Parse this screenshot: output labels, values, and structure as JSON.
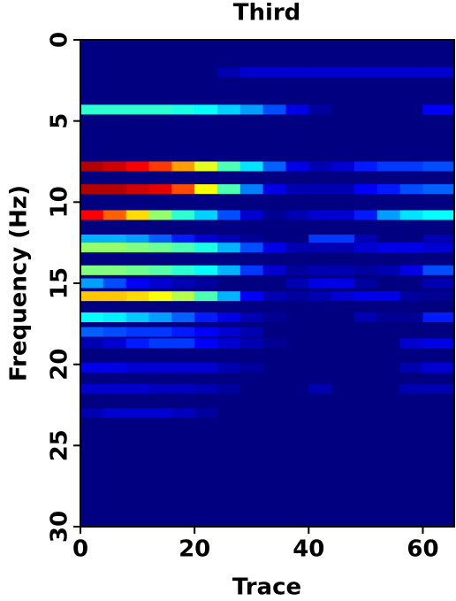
{
  "chart_data": {
    "type": "heatmap",
    "title": "Third",
    "x_label": "Trace",
    "y_label": "Frequency (Hz)",
    "colormap": "jet",
    "zlim": [
      0,
      1
    ],
    "xlim": [
      0,
      65.5
    ],
    "xticks": [
      0,
      20,
      40,
      60
    ],
    "ylim": [
      0,
      30
    ],
    "yticks": [
      0,
      5,
      10,
      15,
      20,
      25,
      30
    ],
    "y_inverted": true,
    "x": [
      0,
      4,
      8,
      12,
      16,
      20,
      24,
      28,
      32,
      36,
      40,
      44,
      48,
      52,
      56,
      60
    ],
    "y": [
      2.0,
      4.3,
      7.8,
      9.2,
      10.8,
      12.3,
      12.8,
      14.2,
      15.0,
      15.8,
      17.1,
      18.0,
      18.7,
      20.2,
      21.5,
      23.0
    ],
    "z": [
      [
        0,
        0,
        0,
        0,
        0,
        0,
        0.05,
        0.08,
        0.08,
        0.08,
        0.08,
        0.08,
        0.08,
        0.08,
        0.08,
        0.08
      ],
      [
        0.42,
        0.42,
        0.42,
        0.42,
        0.4,
        0.38,
        0.33,
        0.28,
        0.2,
        0.1,
        0.03,
        0,
        0,
        0,
        0,
        0.12
      ],
      [
        0.95,
        0.92,
        0.88,
        0.82,
        0.72,
        0.6,
        0.45,
        0.35,
        0.22,
        0.1,
        0.05,
        0.08,
        0.15,
        0.18,
        0.18,
        0.2
      ],
      [
        0.95,
        0.95,
        0.92,
        0.9,
        0.8,
        0.62,
        0.45,
        0.25,
        0.1,
        0.05,
        0.05,
        0.05,
        0.12,
        0.15,
        0.2,
        0.22
      ],
      [
        0.88,
        0.78,
        0.66,
        0.52,
        0.42,
        0.33,
        0.2,
        0.08,
        0.02,
        0.05,
        0.08,
        0.08,
        0.15,
        0.28,
        0.35,
        0.38
      ],
      [
        0.3,
        0.3,
        0.28,
        0.22,
        0.15,
        0.08,
        0.05,
        0.02,
        0,
        0,
        0.18,
        0.18,
        0.05,
        0,
        0,
        0.05
      ],
      [
        0.52,
        0.52,
        0.5,
        0.48,
        0.45,
        0.4,
        0.3,
        0.2,
        0.1,
        0.05,
        0.05,
        0.05,
        0.08,
        0.1,
        0.1,
        0.08
      ],
      [
        0.5,
        0.5,
        0.48,
        0.46,
        0.42,
        0.38,
        0.3,
        0.18,
        0.08,
        0.03,
        0.05,
        0.05,
        0.03,
        0.05,
        0.1,
        0.2
      ],
      [
        0.28,
        0.2,
        0.12,
        0.08,
        0.05,
        0.03,
        0,
        0,
        0,
        0.05,
        0.1,
        0.1,
        0.03,
        0,
        0,
        0.05
      ],
      [
        0.68,
        0.68,
        0.66,
        0.62,
        0.55,
        0.45,
        0.3,
        0.12,
        0.05,
        0.03,
        0.05,
        0.08,
        0.1,
        0.1,
        0.03,
        0.02
      ],
      [
        0.38,
        0.36,
        0.32,
        0.28,
        0.22,
        0.15,
        0.1,
        0.05,
        0.02,
        0,
        0,
        0,
        0.05,
        0.02,
        0.02,
        0.15
      ],
      [
        0.22,
        0.2,
        0.18,
        0.18,
        0.15,
        0.12,
        0.08,
        0.05,
        0,
        0,
        0,
        0,
        0,
        0,
        0,
        0
      ],
      [
        0.05,
        0.08,
        0.15,
        0.18,
        0.18,
        0.12,
        0.08,
        0.05,
        0.02,
        0,
        0,
        0,
        0,
        0,
        0.08,
        0.1
      ],
      [
        0.1,
        0.1,
        0.08,
        0.08,
        0.08,
        0.08,
        0.05,
        0.03,
        0,
        0,
        0,
        0,
        0,
        0,
        0.05,
        0.08
      ],
      [
        0.08,
        0.08,
        0.08,
        0.06,
        0.06,
        0.05,
        0.03,
        0,
        0,
        0,
        0.05,
        0,
        0,
        0,
        0.05,
        0.05
      ],
      [
        0.05,
        0.08,
        0.08,
        0.08,
        0.06,
        0.03,
        0,
        0,
        0,
        0,
        0,
        0,
        0,
        0,
        0,
        0
      ]
    ]
  }
}
